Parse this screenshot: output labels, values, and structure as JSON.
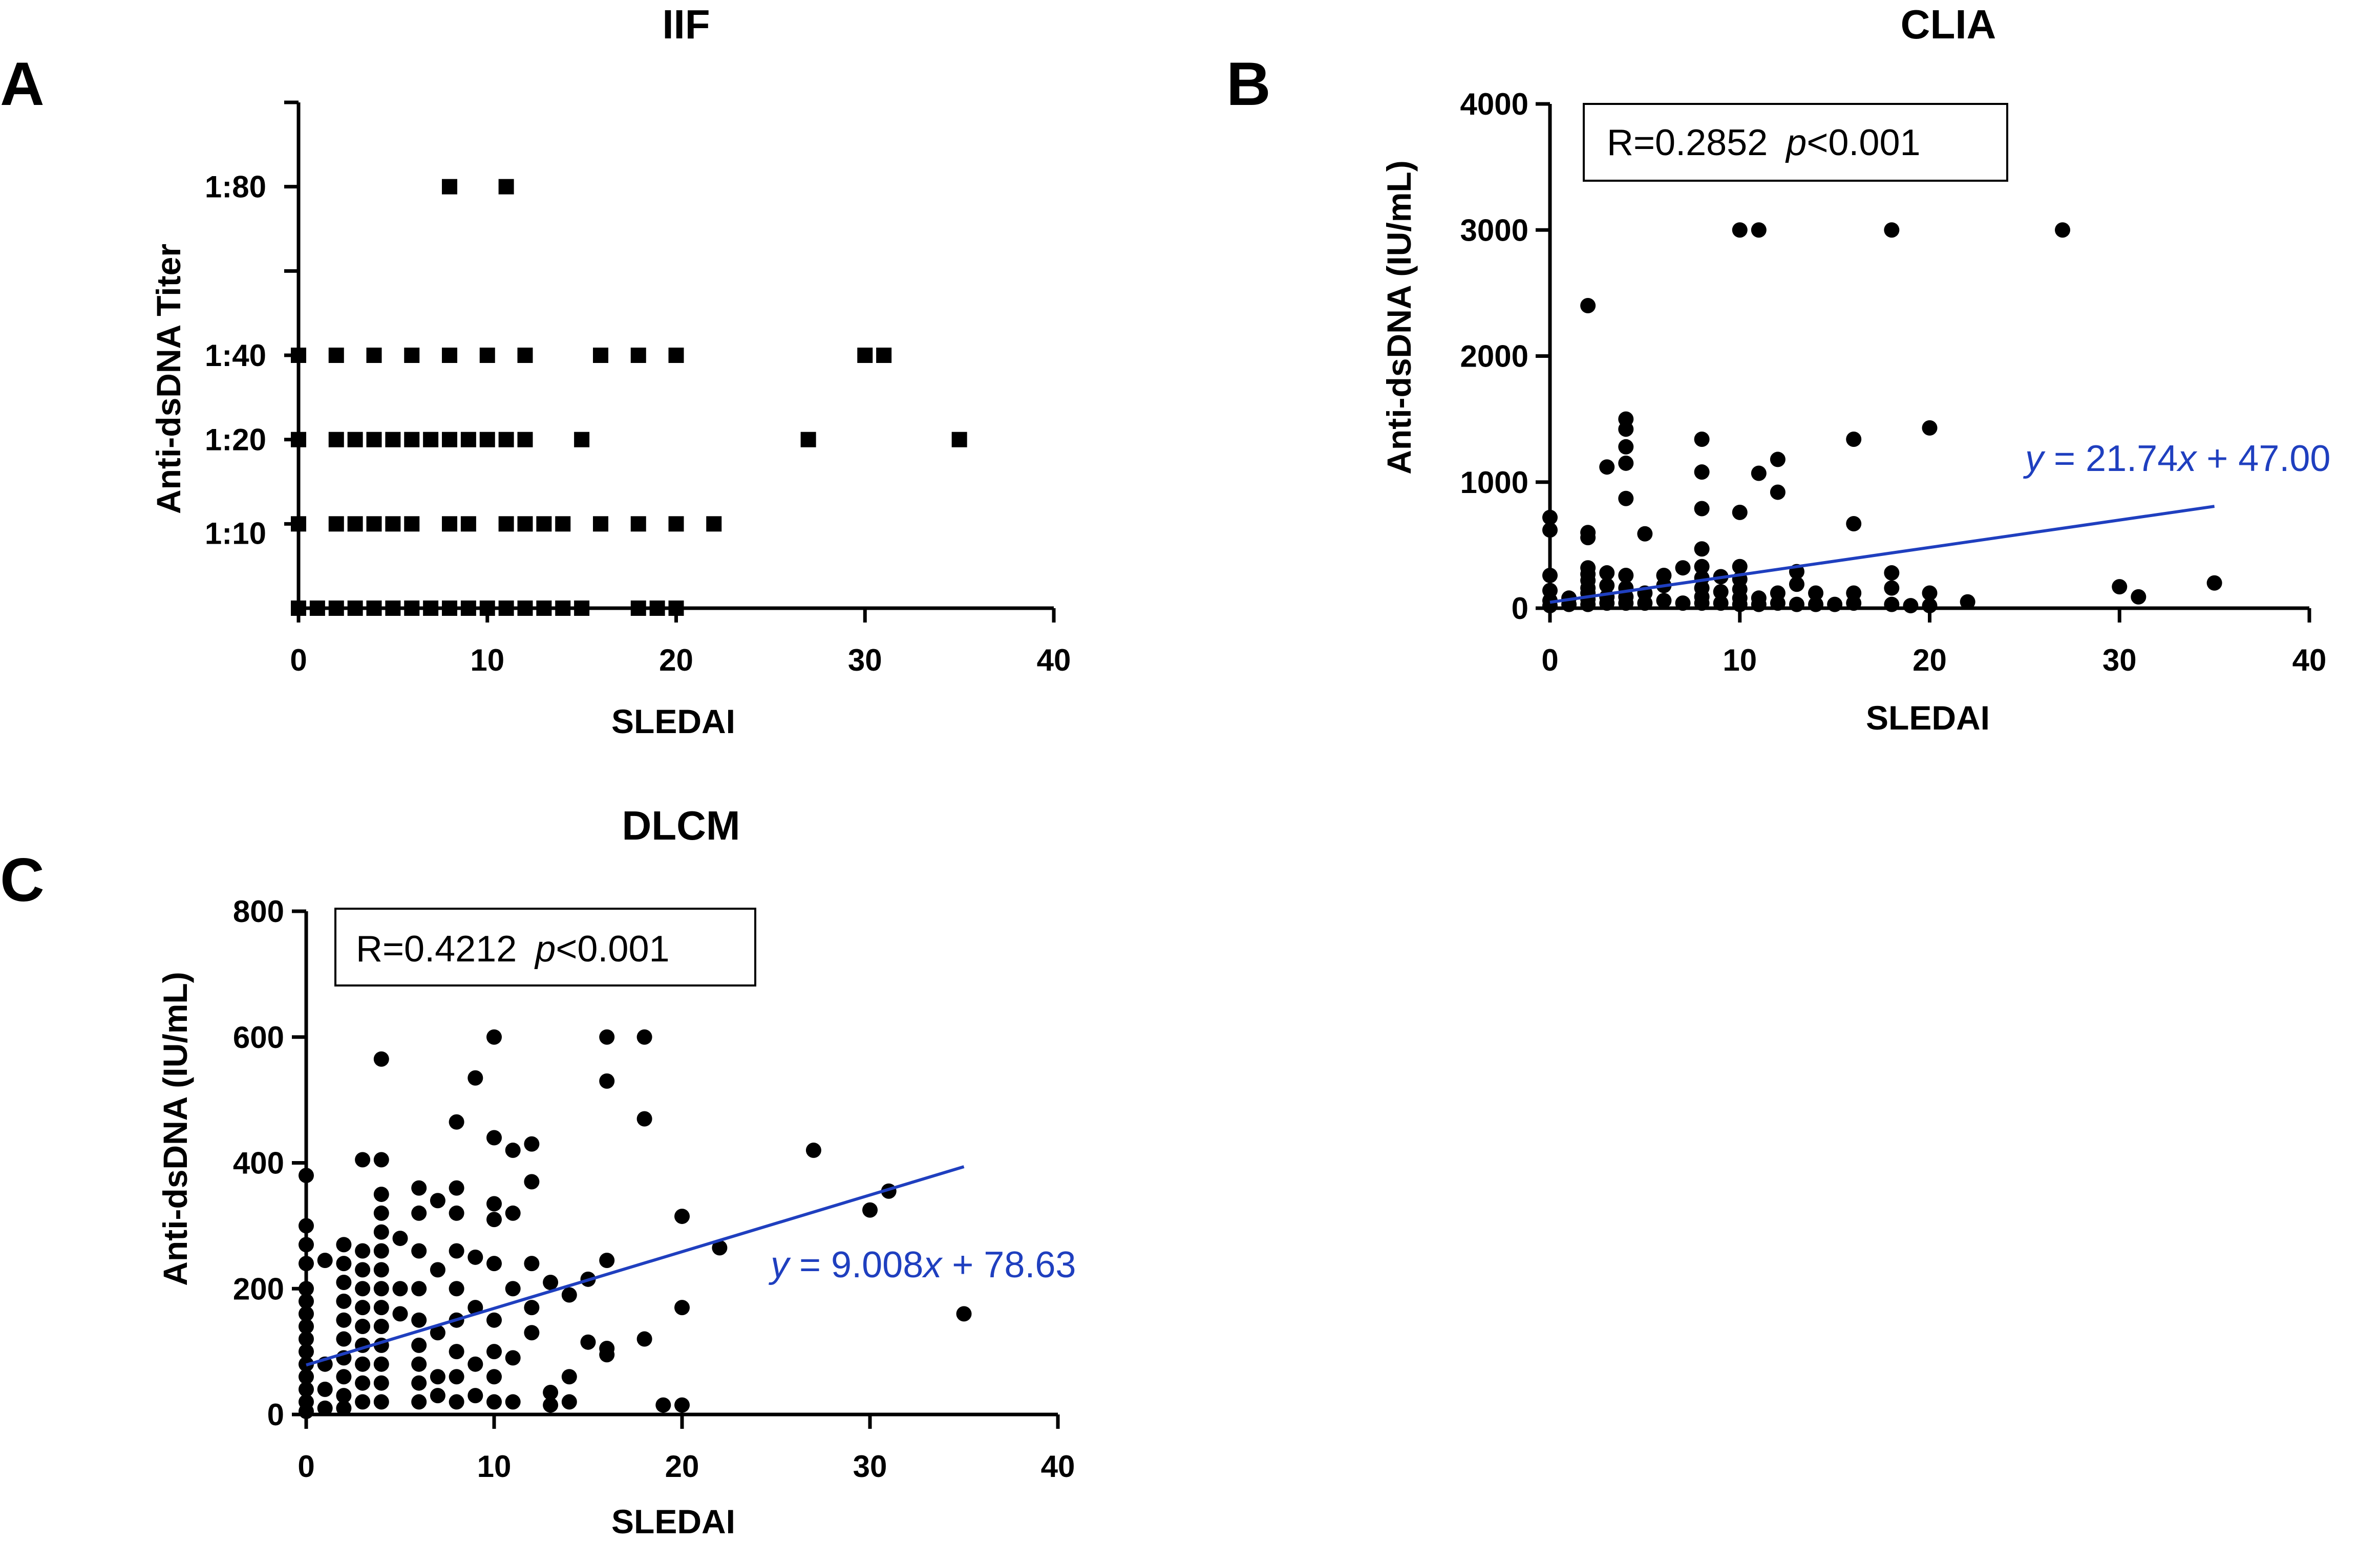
{
  "chart_data": [
    {
      "type": "scatter",
      "panel": "A",
      "title": "IIF",
      "xlabel": "SLEDAI",
      "ylabel": "Anti-dsDNA Titer",
      "xlim": [
        0,
        40
      ],
      "x_ticks": [
        0,
        10,
        20,
        30,
        40
      ],
      "y_categories": [
        "",
        "1:10",
        "1:20",
        "1:40",
        "",
        "1:80",
        ""
      ],
      "y_tick_labels": [
        "1:10",
        "1:20",
        "1:40",
        "1:80"
      ],
      "marker": "square",
      "points": [
        {
          "x": 0,
          "y": 0
        },
        {
          "x": 1,
          "y": 0
        },
        {
          "x": 2,
          "y": 0
        },
        {
          "x": 3,
          "y": 0
        },
        {
          "x": 4,
          "y": 0
        },
        {
          "x": 5,
          "y": 0
        },
        {
          "x": 6,
          "y": 0
        },
        {
          "x": 7,
          "y": 0
        },
        {
          "x": 8,
          "y": 0
        },
        {
          "x": 9,
          "y": 0
        },
        {
          "x": 10,
          "y": 0
        },
        {
          "x": 11,
          "y": 0
        },
        {
          "x": 12,
          "y": 0
        },
        {
          "x": 13,
          "y": 0
        },
        {
          "x": 14,
          "y": 0
        },
        {
          "x": 15,
          "y": 0
        },
        {
          "x": 18,
          "y": 0
        },
        {
          "x": 19,
          "y": 0
        },
        {
          "x": 20,
          "y": 0
        },
        {
          "x": 0,
          "y": 1
        },
        {
          "x": 2,
          "y": 1
        },
        {
          "x": 3,
          "y": 1
        },
        {
          "x": 4,
          "y": 1
        },
        {
          "x": 5,
          "y": 1
        },
        {
          "x": 6,
          "y": 1
        },
        {
          "x": 8,
          "y": 1
        },
        {
          "x": 9,
          "y": 1
        },
        {
          "x": 11,
          "y": 1
        },
        {
          "x": 12,
          "y": 1
        },
        {
          "x": 13,
          "y": 1
        },
        {
          "x": 14,
          "y": 1
        },
        {
          "x": 16,
          "y": 1
        },
        {
          "x": 18,
          "y": 1
        },
        {
          "x": 20,
          "y": 1
        },
        {
          "x": 22,
          "y": 1
        },
        {
          "x": 0,
          "y": 2
        },
        {
          "x": 2,
          "y": 2
        },
        {
          "x": 3,
          "y": 2
        },
        {
          "x": 4,
          "y": 2
        },
        {
          "x": 5,
          "y": 2
        },
        {
          "x": 6,
          "y": 2
        },
        {
          "x": 7,
          "y": 2
        },
        {
          "x": 8,
          "y": 2
        },
        {
          "x": 9,
          "y": 2
        },
        {
          "x": 10,
          "y": 2
        },
        {
          "x": 11,
          "y": 2
        },
        {
          "x": 12,
          "y": 2
        },
        {
          "x": 15,
          "y": 2
        },
        {
          "x": 27,
          "y": 2
        },
        {
          "x": 35,
          "y": 2
        },
        {
          "x": 0,
          "y": 3
        },
        {
          "x": 2,
          "y": 3
        },
        {
          "x": 4,
          "y": 3
        },
        {
          "x": 6,
          "y": 3
        },
        {
          "x": 8,
          "y": 3
        },
        {
          "x": 10,
          "y": 3
        },
        {
          "x": 12,
          "y": 3
        },
        {
          "x": 16,
          "y": 3
        },
        {
          "x": 18,
          "y": 3
        },
        {
          "x": 20,
          "y": 3
        },
        {
          "x": 30,
          "y": 3
        },
        {
          "x": 31,
          "y": 3
        },
        {
          "x": 8,
          "y": 5
        },
        {
          "x": 11,
          "y": 5
        }
      ]
    },
    {
      "type": "scatter",
      "panel": "B",
      "title": "CLIA",
      "xlabel": "SLEDAI",
      "ylabel": "Anti-dsDNA (IU/mL)",
      "xlim": [
        0,
        40
      ],
      "ylim": [
        0,
        4000
      ],
      "x_ticks": [
        0,
        10,
        20,
        30,
        40
      ],
      "y_ticks": [
        0,
        1000,
        2000,
        3000,
        4000
      ],
      "stat_R": "R=0.2852",
      "stat_p_symbol": "p",
      "stat_p_rest": "<0.001",
      "fit": {
        "slope": 21.74,
        "intercept": 47.0,
        "x_range": [
          0,
          35
        ],
        "color": "#1f3fbf"
      },
      "eq_prefix": "y",
      "eq_mid": " = 21.74",
      "eq_var": "x",
      "eq_suffix": " + 47.00",
      "points": [
        {
          "x": 0,
          "y": 720
        },
        {
          "x": 0,
          "y": 620
        },
        {
          "x": 0,
          "y": 260
        },
        {
          "x": 0,
          "y": 140
        },
        {
          "x": 0,
          "y": 60
        },
        {
          "x": 0,
          "y": 20
        },
        {
          "x": 1,
          "y": 80
        },
        {
          "x": 1,
          "y": 30
        },
        {
          "x": 2,
          "y": 2400
        },
        {
          "x": 2,
          "y": 600
        },
        {
          "x": 2,
          "y": 560
        },
        {
          "x": 2,
          "y": 320
        },
        {
          "x": 2,
          "y": 270
        },
        {
          "x": 2,
          "y": 220
        },
        {
          "x": 2,
          "y": 160
        },
        {
          "x": 2,
          "y": 120
        },
        {
          "x": 2,
          "y": 70
        },
        {
          "x": 2,
          "y": 30
        },
        {
          "x": 3,
          "y": 1120
        },
        {
          "x": 3,
          "y": 280
        },
        {
          "x": 3,
          "y": 180
        },
        {
          "x": 3,
          "y": 90
        },
        {
          "x": 3,
          "y": 40
        },
        {
          "x": 4,
          "y": 1500
        },
        {
          "x": 4,
          "y": 1420
        },
        {
          "x": 4,
          "y": 1280
        },
        {
          "x": 4,
          "y": 1150
        },
        {
          "x": 4,
          "y": 870
        },
        {
          "x": 4,
          "y": 260
        },
        {
          "x": 4,
          "y": 160
        },
        {
          "x": 4,
          "y": 90
        },
        {
          "x": 4,
          "y": 40
        },
        {
          "x": 5,
          "y": 590
        },
        {
          "x": 5,
          "y": 120
        },
        {
          "x": 5,
          "y": 40
        },
        {
          "x": 6,
          "y": 260
        },
        {
          "x": 6,
          "y": 180
        },
        {
          "x": 6,
          "y": 60
        },
        {
          "x": 7,
          "y": 320
        },
        {
          "x": 7,
          "y": 40
        },
        {
          "x": 8,
          "y": 1340
        },
        {
          "x": 8,
          "y": 1080
        },
        {
          "x": 8,
          "y": 790
        },
        {
          "x": 8,
          "y": 470
        },
        {
          "x": 8,
          "y": 330
        },
        {
          "x": 8,
          "y": 240
        },
        {
          "x": 8,
          "y": 160
        },
        {
          "x": 8,
          "y": 90
        },
        {
          "x": 8,
          "y": 40
        },
        {
          "x": 9,
          "y": 250
        },
        {
          "x": 9,
          "y": 130
        },
        {
          "x": 9,
          "y": 40
        },
        {
          "x": 10,
          "y": 3000
        },
        {
          "x": 10,
          "y": 760
        },
        {
          "x": 10,
          "y": 330
        },
        {
          "x": 10,
          "y": 230
        },
        {
          "x": 10,
          "y": 150
        },
        {
          "x": 10,
          "y": 80
        },
        {
          "x": 10,
          "y": 30
        },
        {
          "x": 11,
          "y": 3000
        },
        {
          "x": 11,
          "y": 1070
        },
        {
          "x": 11,
          "y": 80
        },
        {
          "x": 11,
          "y": 30
        },
        {
          "x": 12,
          "y": 1180
        },
        {
          "x": 12,
          "y": 920
        },
        {
          "x": 12,
          "y": 120
        },
        {
          "x": 12,
          "y": 40
        },
        {
          "x": 13,
          "y": 290
        },
        {
          "x": 13,
          "y": 190
        },
        {
          "x": 13,
          "y": 30
        },
        {
          "x": 14,
          "y": 120
        },
        {
          "x": 14,
          "y": 30
        },
        {
          "x": 15,
          "y": 30
        },
        {
          "x": 16,
          "y": 1340
        },
        {
          "x": 16,
          "y": 670
        },
        {
          "x": 16,
          "y": 120
        },
        {
          "x": 16,
          "y": 40
        },
        {
          "x": 18,
          "y": 3000
        },
        {
          "x": 18,
          "y": 280
        },
        {
          "x": 18,
          "y": 160
        },
        {
          "x": 18,
          "y": 30
        },
        {
          "x": 19,
          "y": 20
        },
        {
          "x": 20,
          "y": 1430
        },
        {
          "x": 20,
          "y": 120
        },
        {
          "x": 20,
          "y": 20
        },
        {
          "x": 22,
          "y": 50
        },
        {
          "x": 27,
          "y": 3000
        },
        {
          "x": 30,
          "y": 170
        },
        {
          "x": 31,
          "y": 90
        },
        {
          "x": 35,
          "y": 200
        }
      ]
    },
    {
      "type": "scatter",
      "panel": "C",
      "title": "DLCM",
      "xlabel": "SLEDAI",
      "ylabel": "Anti-dsDNA (IU/mL)",
      "xlim": [
        0,
        40
      ],
      "ylim": [
        0,
        800
      ],
      "x_ticks": [
        0,
        10,
        20,
        30,
        40
      ],
      "y_ticks": [
        0,
        200,
        400,
        600,
        800
      ],
      "stat_R": "R=0.4212",
      "stat_p_symbol": "p",
      "stat_p_rest": "<0.001",
      "fit": {
        "slope": 9.008,
        "intercept": 78.63,
        "x_range": [
          0,
          35
        ],
        "color": "#1f3fbf"
      },
      "eq_prefix": "y",
      "eq_mid": " = 9.008",
      "eq_var": "x",
      "eq_suffix": " + 78.63",
      "points": [
        {
          "x": 0,
          "y": 380
        },
        {
          "x": 0,
          "y": 300
        },
        {
          "x": 0,
          "y": 270
        },
        {
          "x": 0,
          "y": 240
        },
        {
          "x": 0,
          "y": 200
        },
        {
          "x": 0,
          "y": 180
        },
        {
          "x": 0,
          "y": 160
        },
        {
          "x": 0,
          "y": 140
        },
        {
          "x": 0,
          "y": 120
        },
        {
          "x": 0,
          "y": 100
        },
        {
          "x": 0,
          "y": 80
        },
        {
          "x": 0,
          "y": 60
        },
        {
          "x": 0,
          "y": 40
        },
        {
          "x": 0,
          "y": 20
        },
        {
          "x": 0,
          "y": 5
        },
        {
          "x": 1,
          "y": 80
        },
        {
          "x": 1,
          "y": 40
        },
        {
          "x": 1,
          "y": 10
        },
        {
          "x": 1,
          "y": 245
        },
        {
          "x": 2,
          "y": 270
        },
        {
          "x": 2,
          "y": 240
        },
        {
          "x": 2,
          "y": 210
        },
        {
          "x": 2,
          "y": 180
        },
        {
          "x": 2,
          "y": 150
        },
        {
          "x": 2,
          "y": 120
        },
        {
          "x": 2,
          "y": 90
        },
        {
          "x": 2,
          "y": 60
        },
        {
          "x": 2,
          "y": 30
        },
        {
          "x": 2,
          "y": 10
        },
        {
          "x": 3,
          "y": 405
        },
        {
          "x": 3,
          "y": 260
        },
        {
          "x": 3,
          "y": 230
        },
        {
          "x": 3,
          "y": 200
        },
        {
          "x": 3,
          "y": 170
        },
        {
          "x": 3,
          "y": 140
        },
        {
          "x": 3,
          "y": 110
        },
        {
          "x": 3,
          "y": 80
        },
        {
          "x": 3,
          "y": 50
        },
        {
          "x": 3,
          "y": 20
        },
        {
          "x": 4,
          "y": 565
        },
        {
          "x": 4,
          "y": 405
        },
        {
          "x": 4,
          "y": 350
        },
        {
          "x": 4,
          "y": 320
        },
        {
          "x": 4,
          "y": 290
        },
        {
          "x": 4,
          "y": 260
        },
        {
          "x": 4,
          "y": 230
        },
        {
          "x": 4,
          "y": 200
        },
        {
          "x": 4,
          "y": 170
        },
        {
          "x": 4,
          "y": 140
        },
        {
          "x": 4,
          "y": 110
        },
        {
          "x": 4,
          "y": 80
        },
        {
          "x": 4,
          "y": 50
        },
        {
          "x": 4,
          "y": 20
        },
        {
          "x": 5,
          "y": 280
        },
        {
          "x": 5,
          "y": 200
        },
        {
          "x": 5,
          "y": 160
        },
        {
          "x": 6,
          "y": 360
        },
        {
          "x": 6,
          "y": 320
        },
        {
          "x": 6,
          "y": 260
        },
        {
          "x": 6,
          "y": 200
        },
        {
          "x": 6,
          "y": 150
        },
        {
          "x": 6,
          "y": 110
        },
        {
          "x": 6,
          "y": 80
        },
        {
          "x": 6,
          "y": 50
        },
        {
          "x": 6,
          "y": 20
        },
        {
          "x": 7,
          "y": 340
        },
        {
          "x": 7,
          "y": 230
        },
        {
          "x": 7,
          "y": 130
        },
        {
          "x": 7,
          "y": 60
        },
        {
          "x": 7,
          "y": 30
        },
        {
          "x": 8,
          "y": 465
        },
        {
          "x": 8,
          "y": 360
        },
        {
          "x": 8,
          "y": 320
        },
        {
          "x": 8,
          "y": 260
        },
        {
          "x": 8,
          "y": 200
        },
        {
          "x": 8,
          "y": 150
        },
        {
          "x": 8,
          "y": 100
        },
        {
          "x": 8,
          "y": 60
        },
        {
          "x": 8,
          "y": 20
        },
        {
          "x": 9,
          "y": 535
        },
        {
          "x": 9,
          "y": 250
        },
        {
          "x": 9,
          "y": 170
        },
        {
          "x": 9,
          "y": 80
        },
        {
          "x": 9,
          "y": 30
        },
        {
          "x": 10,
          "y": 600
        },
        {
          "x": 10,
          "y": 440
        },
        {
          "x": 10,
          "y": 335
        },
        {
          "x": 10,
          "y": 310
        },
        {
          "x": 10,
          "y": 240
        },
        {
          "x": 10,
          "y": 150
        },
        {
          "x": 10,
          "y": 100
        },
        {
          "x": 10,
          "y": 60
        },
        {
          "x": 10,
          "y": 20
        },
        {
          "x": 11,
          "y": 420
        },
        {
          "x": 11,
          "y": 320
        },
        {
          "x": 11,
          "y": 200
        },
        {
          "x": 11,
          "y": 90
        },
        {
          "x": 11,
          "y": 20
        },
        {
          "x": 12,
          "y": 430
        },
        {
          "x": 12,
          "y": 370
        },
        {
          "x": 12,
          "y": 240
        },
        {
          "x": 12,
          "y": 170
        },
        {
          "x": 12,
          "y": 130
        },
        {
          "x": 13,
          "y": 210
        },
        {
          "x": 13,
          "y": 35
        },
        {
          "x": 13,
          "y": 15
        },
        {
          "x": 14,
          "y": 190
        },
        {
          "x": 14,
          "y": 60
        },
        {
          "x": 14,
          "y": 20
        },
        {
          "x": 15,
          "y": 215
        },
        {
          "x": 15,
          "y": 115
        },
        {
          "x": 16,
          "y": 600
        },
        {
          "x": 16,
          "y": 530
        },
        {
          "x": 16,
          "y": 245
        },
        {
          "x": 16,
          "y": 105
        },
        {
          "x": 16,
          "y": 95
        },
        {
          "x": 18,
          "y": 600
        },
        {
          "x": 18,
          "y": 470
        },
        {
          "x": 18,
          "y": 120
        },
        {
          "x": 19,
          "y": 15
        },
        {
          "x": 20,
          "y": 315
        },
        {
          "x": 20,
          "y": 170
        },
        {
          "x": 20,
          "y": 15
        },
        {
          "x": 22,
          "y": 265
        },
        {
          "x": 27,
          "y": 420
        },
        {
          "x": 30,
          "y": 325
        },
        {
          "x": 31,
          "y": 355
        },
        {
          "x": 35,
          "y": 160
        }
      ]
    }
  ]
}
